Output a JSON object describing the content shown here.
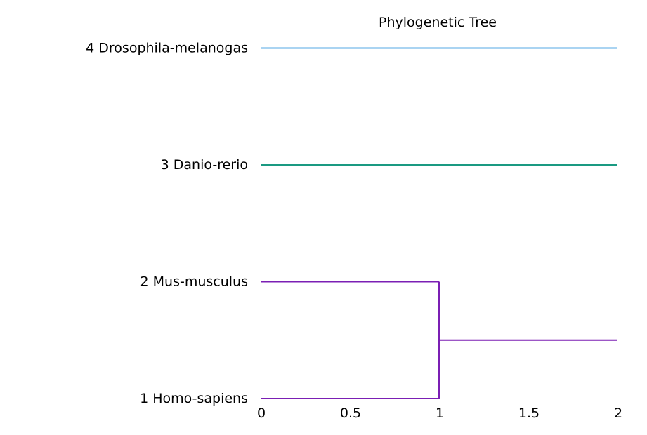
{
  "chart_data": {
    "type": "dendrogram",
    "title": "Phylogenetic Tree",
    "xlabel": "",
    "ylabel": "",
    "xlim": [
      0,
      2
    ],
    "xticks": [
      "0",
      "0.5",
      "1",
      "1.5",
      "2"
    ],
    "grid": false,
    "leaves": [
      {
        "label": "1 Homo-sapiens",
        "color": "#7b1fb4"
      },
      {
        "label": "2 Mus-musculus",
        "color": "#7b1fb4"
      },
      {
        "label": "3 Danio-rerio",
        "color": "#1a9a82"
      },
      {
        "label": "4 Drosophila-melanogas",
        "color": "#55aae6"
      }
    ],
    "clusters": [
      {
        "members": [
          1,
          2
        ],
        "height": 1,
        "color": "#7b1fb4"
      }
    ],
    "branches": [
      {
        "from": "leaf1",
        "x0": 0,
        "x1": 1,
        "color": "#7b1fb4"
      },
      {
        "from": "leaf2",
        "x0": 0,
        "x1": 1,
        "color": "#7b1fb4"
      },
      {
        "from": "cluster1-2",
        "x0": 1,
        "x1": 2,
        "color": "#7b1fb4"
      },
      {
        "from": "leaf3",
        "x0": 0,
        "x1": 2,
        "color": "#1a9a82"
      },
      {
        "from": "leaf4",
        "x0": 0,
        "x1": 2,
        "color": "#55aae6"
      }
    ]
  }
}
